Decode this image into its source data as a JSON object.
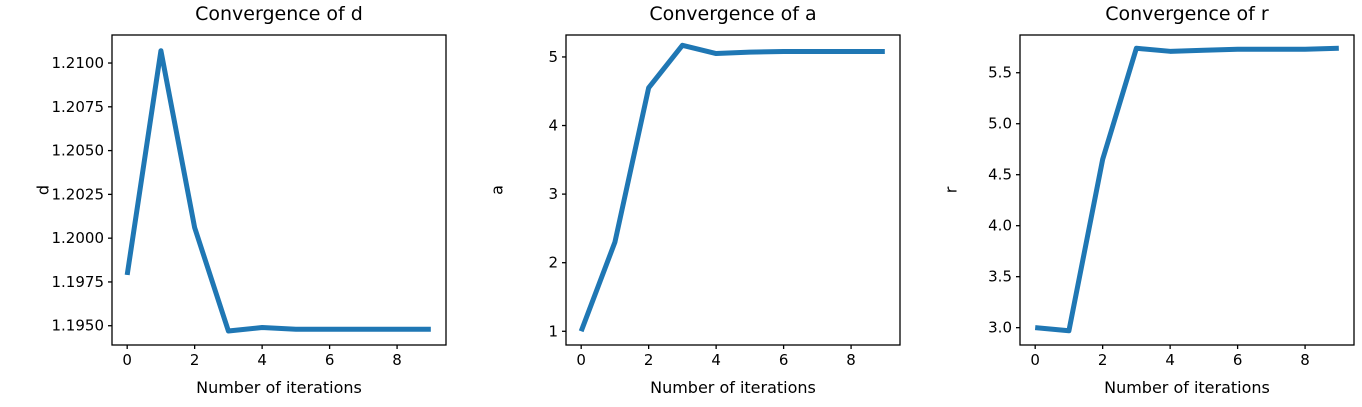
{
  "figure": {
    "background": "#ffffff",
    "axis_color": "#000000",
    "text_color": "#000000",
    "series_color": "#1f77b4"
  },
  "chart_data": [
    {
      "type": "line",
      "title": "Convergence of d",
      "xlabel": "Number of iterations",
      "ylabel": "d",
      "x": [
        0,
        1,
        2,
        3,
        4,
        5,
        6,
        7,
        8,
        9
      ],
      "y": [
        1.1979,
        1.2107,
        1.2006,
        1.1947,
        1.1949,
        1.1948,
        1.1948,
        1.1948,
        1.1948,
        1.1948
      ],
      "xlim": [
        -0.45,
        9.45
      ],
      "ylim": [
        1.1939,
        1.2116
      ],
      "xtick_values": [
        0,
        2,
        4,
        6,
        8
      ],
      "xtick_labels": [
        "0",
        "2",
        "4",
        "6",
        "8"
      ],
      "ytick_values": [
        1.195,
        1.1975,
        1.2,
        1.2025,
        1.205,
        1.2075,
        1.21
      ],
      "ytick_labels": [
        "1.1950",
        "1.1975",
        "1.2000",
        "1.2025",
        "1.2050",
        "1.2075",
        "1.2100"
      ],
      "grid": false,
      "legend": null,
      "line_color": "#1f77b4",
      "line_width": 5
    },
    {
      "type": "line",
      "title": "Convergence of a",
      "xlabel": "Number of iterations",
      "ylabel": "a",
      "x": [
        0,
        1,
        2,
        3,
        4,
        5,
        6,
        7,
        8,
        9
      ],
      "y": [
        1.0,
        2.3,
        4.55,
        5.17,
        5.05,
        5.07,
        5.08,
        5.08,
        5.08,
        5.08
      ],
      "xlim": [
        -0.45,
        9.45
      ],
      "ylim": [
        0.8,
        5.32
      ],
      "xtick_values": [
        0,
        2,
        4,
        6,
        8
      ],
      "xtick_labels": [
        "0",
        "2",
        "4",
        "6",
        "8"
      ],
      "ytick_values": [
        1,
        2,
        3,
        4,
        5
      ],
      "ytick_labels": [
        "1",
        "2",
        "3",
        "4",
        "5"
      ],
      "grid": false,
      "legend": null,
      "line_color": "#1f77b4",
      "line_width": 5
    },
    {
      "type": "line",
      "title": "Convergence of r",
      "xlabel": "Number of iterations",
      "ylabel": "r",
      "x": [
        0,
        1,
        2,
        3,
        4,
        5,
        6,
        7,
        8,
        9
      ],
      "y": [
        3.0,
        2.97,
        4.65,
        5.74,
        5.71,
        5.72,
        5.73,
        5.73,
        5.73,
        5.74
      ],
      "xlim": [
        -0.45,
        9.45
      ],
      "ylim": [
        2.83,
        5.87
      ],
      "xtick_values": [
        0,
        2,
        4,
        6,
        8
      ],
      "xtick_labels": [
        "0",
        "2",
        "4",
        "6",
        "8"
      ],
      "ytick_values": [
        3.0,
        3.5,
        4.0,
        4.5,
        5.0,
        5.5
      ],
      "ytick_labels": [
        "3.0",
        "3.5",
        "4.0",
        "4.5",
        "5.0",
        "5.5"
      ],
      "grid": false,
      "legend": null,
      "line_color": "#1f77b4",
      "line_width": 5
    }
  ]
}
